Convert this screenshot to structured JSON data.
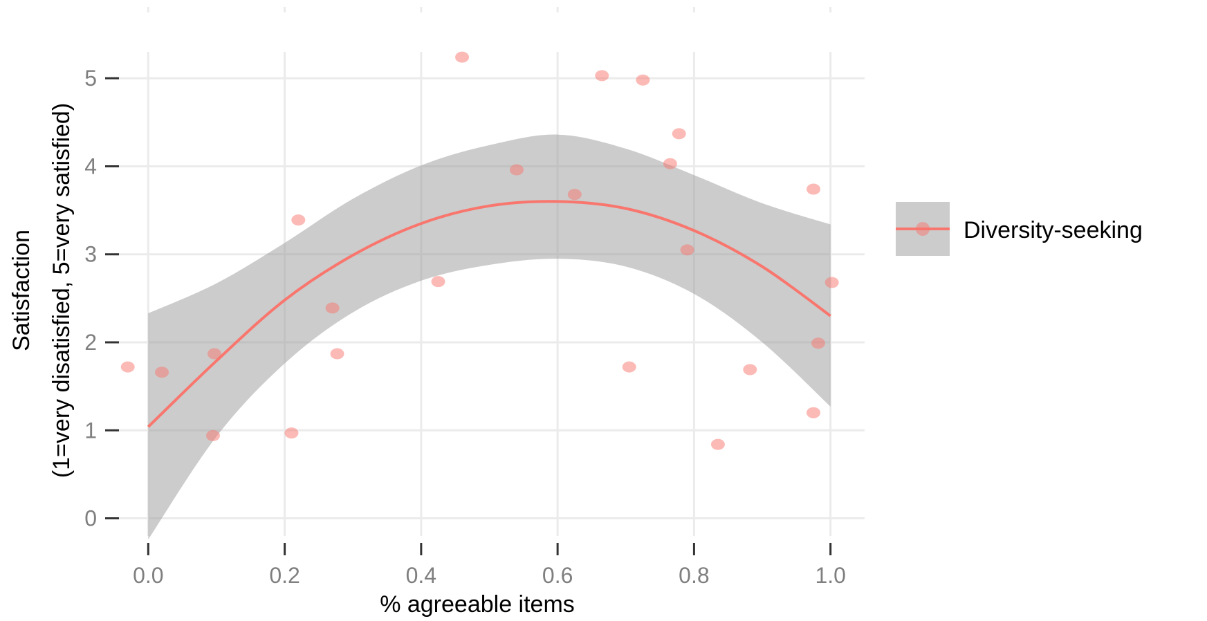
{
  "chart_data": {
    "type": "scatter",
    "xlabel": "% agreeable items",
    "ylabel_lines": [
      "Satisfaction",
      "(1=very disatisfied, 5=very satisfied)"
    ],
    "xlim": [
      -0.05,
      1.05
    ],
    "ylim": [
      -0.2,
      5.3
    ],
    "x_ticks": [
      0.0,
      0.2,
      0.4,
      0.6,
      0.8,
      1.0
    ],
    "x_tick_labels": [
      "0.0",
      "0.2",
      "0.4",
      "0.6",
      "0.8",
      "1.0"
    ],
    "y_ticks": [
      0,
      1,
      2,
      3,
      4,
      5
    ],
    "y_tick_labels": [
      "0",
      "1",
      "2",
      "3",
      "4",
      "5"
    ],
    "grid": true,
    "legend_position": "right",
    "series": [
      {
        "name": "Diversity-seeking",
        "color": "#f8766d",
        "points": [
          {
            "x": -0.03,
            "y": 1.72
          },
          {
            "x": 0.02,
            "y": 1.66
          },
          {
            "x": 0.095,
            "y": 0.94
          },
          {
            "x": 0.097,
            "y": 1.87
          },
          {
            "x": 0.21,
            "y": 0.97
          },
          {
            "x": 0.22,
            "y": 3.39
          },
          {
            "x": 0.27,
            "y": 2.39
          },
          {
            "x": 0.277,
            "y": 1.87
          },
          {
            "x": 0.425,
            "y": 2.69
          },
          {
            "x": 0.46,
            "y": 5.24
          },
          {
            "x": 0.54,
            "y": 3.96
          },
          {
            "x": 0.625,
            "y": 3.68
          },
          {
            "x": 0.665,
            "y": 5.03
          },
          {
            "x": 0.705,
            "y": 1.72
          },
          {
            "x": 0.725,
            "y": 4.98
          },
          {
            "x": 0.765,
            "y": 4.03
          },
          {
            "x": 0.778,
            "y": 4.37
          },
          {
            "x": 0.79,
            "y": 3.05
          },
          {
            "x": 0.835,
            "y": 0.84
          },
          {
            "x": 0.882,
            "y": 1.69
          },
          {
            "x": 0.975,
            "y": 3.74
          },
          {
            "x": 0.975,
            "y": 1.2
          },
          {
            "x": 0.982,
            "y": 1.99
          },
          {
            "x": 1.002,
            "y": 2.68
          }
        ],
        "fit": {
          "method": "quadratic",
          "x": [
            0.0,
            0.1,
            0.2,
            0.3,
            0.4,
            0.5,
            0.6,
            0.7,
            0.8,
            0.9,
            1.0
          ],
          "y": [
            1.04,
            1.79,
            2.48,
            2.99,
            3.35,
            3.55,
            3.6,
            3.52,
            3.27,
            2.86,
            2.3
          ],
          "ci_lower": [
            -0.24,
            0.93,
            1.76,
            2.34,
            2.7,
            2.88,
            2.95,
            2.86,
            2.55,
            2.0,
            1.27
          ],
          "ci_upper": [
            2.33,
            2.67,
            3.13,
            3.63,
            4.01,
            4.24,
            4.36,
            4.2,
            3.9,
            3.58,
            3.34
          ],
          "band_color": "#999999"
        }
      }
    ]
  }
}
